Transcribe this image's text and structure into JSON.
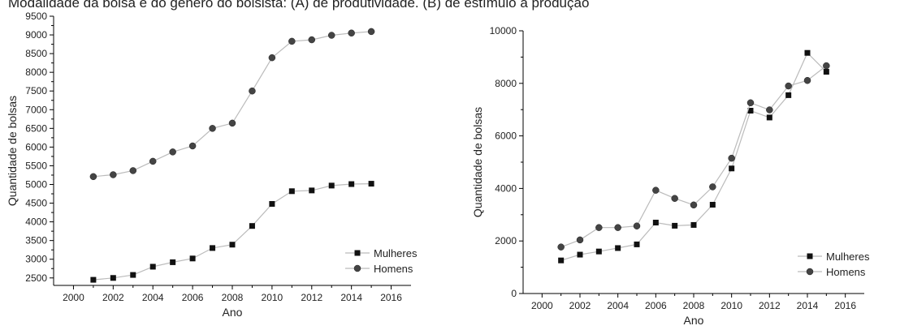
{
  "caption": "Modalidade da bolsa e do gênero do bolsista: (A) de produtividade. (B) de estímulo à produção",
  "chart_data": [
    {
      "type": "line",
      "x": [
        2001,
        2002,
        2003,
        2004,
        2005,
        2006,
        2007,
        2008,
        2009,
        2010,
        2011,
        2012,
        2013,
        2014,
        2015
      ],
      "series": [
        {
          "name": "Mulheres",
          "marker": "square",
          "values": [
            2450,
            2500,
            2580,
            2800,
            2920,
            3020,
            3300,
            3390,
            3890,
            4480,
            4820,
            4840,
            4970,
            5010,
            5020
          ]
        },
        {
          "name": "Homens",
          "marker": "circle",
          "values": [
            5210,
            5260,
            5370,
            5620,
            5870,
            6030,
            6500,
            6640,
            7500,
            8390,
            8830,
            8870,
            8990,
            9050,
            9090
          ]
        }
      ],
      "xlabel": "Ano",
      "ylabel": "Quantidade de bolsas",
      "xlim": [
        1999,
        2017
      ],
      "ylim": [
        2300,
        9500
      ],
      "xticks": [
        2000,
        2002,
        2004,
        2006,
        2008,
        2010,
        2012,
        2014,
        2016
      ],
      "yticks": [
        2500,
        3000,
        3500,
        4000,
        4500,
        5000,
        5500,
        6000,
        6500,
        7000,
        7500,
        8000,
        8500,
        9000,
        9500
      ],
      "legend": "bottom-right",
      "colors": {
        "line": "#bbbbbb",
        "marker": "#111111"
      }
    },
    {
      "type": "line",
      "x": [
        2001,
        2002,
        2003,
        2004,
        2005,
        2006,
        2007,
        2008,
        2009,
        2010,
        2011,
        2012,
        2013,
        2014,
        2015
      ],
      "series": [
        {
          "name": "Mulheres",
          "marker": "square",
          "values": [
            1260,
            1480,
            1600,
            1730,
            1870,
            2700,
            2580,
            2610,
            3380,
            4760,
            6960,
            6700,
            7550,
            9160,
            8440
          ]
        },
        {
          "name": "Homens",
          "marker": "circle",
          "values": [
            1770,
            2040,
            2510,
            2510,
            2570,
            3930,
            3620,
            3370,
            4060,
            5150,
            7260,
            6990,
            7900,
            8110,
            8670
          ]
        }
      ],
      "xlabel": "Ano",
      "ylabel": "Quantidade de bolsas",
      "xlim": [
        1999,
        2017
      ],
      "ylim": [
        0,
        10000
      ],
      "xticks": [
        2000,
        2002,
        2004,
        2006,
        2008,
        2010,
        2012,
        2014,
        2016
      ],
      "yticks": [
        0,
        2000,
        4000,
        6000,
        8000,
        10000
      ],
      "legend": "bottom-right",
      "colors": {
        "line": "#bbbbbb",
        "marker": "#111111"
      }
    }
  ]
}
